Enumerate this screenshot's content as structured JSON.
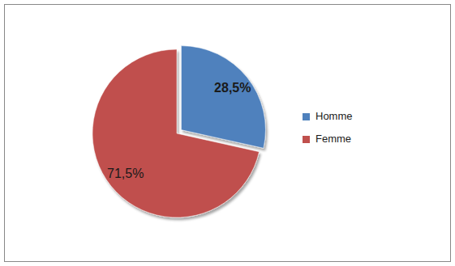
{
  "chart_data": {
    "type": "pie",
    "categories": [
      "Homme",
      "Femme"
    ],
    "values": [
      28.5,
      71.5
    ],
    "value_labels": [
      "28,5%",
      "71,5%"
    ],
    "colors": [
      "#4f81bd",
      "#c0504d"
    ],
    "data_labels": true,
    "legend": "right"
  }
}
